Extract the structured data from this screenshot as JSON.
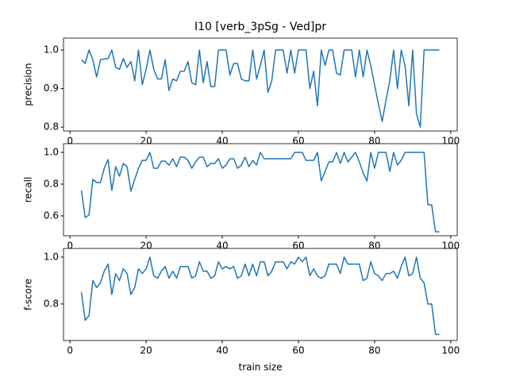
{
  "chart_data": [
    {
      "type": "line",
      "title": "I10 [verb_3pSg - Ved]pr",
      "ylabel": "precision",
      "color": "#1f77b4",
      "x": [
        3,
        4,
        5,
        6,
        7,
        8,
        9,
        10,
        11,
        12,
        13,
        14,
        15,
        16,
        17,
        18,
        19,
        20,
        21,
        22,
        23,
        24,
        25,
        26,
        27,
        28,
        29,
        30,
        31,
        32,
        33,
        34,
        35,
        36,
        37,
        38,
        39,
        40,
        41,
        42,
        43,
        44,
        45,
        46,
        47,
        48,
        49,
        50,
        51,
        52,
        53,
        54,
        55,
        56,
        57,
        58,
        59,
        60,
        61,
        62,
        63,
        64,
        65,
        66,
        67,
        68,
        69,
        70,
        71,
        72,
        73,
        74,
        75,
        76,
        77,
        78,
        79,
        80,
        81,
        82,
        83,
        84,
        85,
        86,
        87,
        88,
        89,
        90,
        91,
        92,
        93,
        94,
        95,
        96,
        97
      ],
      "values": [
        0.975,
        0.965,
        1.0,
        0.975,
        0.93,
        0.975,
        0.977,
        0.978,
        1.0,
        0.955,
        0.95,
        0.978,
        0.955,
        0.97,
        0.92,
        1.0,
        0.91,
        0.95,
        1.0,
        0.95,
        0.925,
        0.925,
        0.975,
        0.895,
        0.925,
        0.92,
        0.945,
        0.945,
        0.97,
        0.915,
        0.91,
        1.0,
        0.915,
        0.97,
        0.905,
        0.905,
        1.0,
        1.0,
        1.0,
        0.935,
        0.965,
        0.965,
        0.925,
        0.92,
        0.92,
        1.0,
        0.925,
        0.96,
        1.0,
        0.89,
        0.92,
        1.0,
        1.0,
        1.0,
        0.94,
        1.0,
        0.94,
        1.0,
        1.0,
        1.0,
        0.9,
        0.945,
        0.855,
        1.0,
        0.96,
        1.0,
        1.0,
        0.94,
        0.935,
        1.0,
        1.0,
        1.0,
        0.93,
        1.0,
        0.93,
        1.0,
        0.96,
        0.91,
        0.86,
        0.815,
        0.87,
        0.92,
        1.0,
        0.9,
        1.0,
        0.96,
        0.855,
        1.0,
        0.835,
        0.8,
        1.0,
        1.0,
        1.0,
        1.0,
        1.0
      ],
      "xlim": [
        -1.7,
        101.7
      ],
      "xticks": [
        0,
        20,
        40,
        60,
        80,
        100
      ],
      "ylim": [
        0.79,
        1.031
      ],
      "yticks": [
        0.8,
        0.9,
        {
          "value": 1.0,
          "label": "1.0"
        }
      ]
    },
    {
      "type": "line",
      "ylabel": "recall",
      "color": "#1f77b4",
      "x": [
        3,
        4,
        5,
        6,
        7,
        8,
        9,
        10,
        11,
        12,
        13,
        14,
        15,
        16,
        17,
        18,
        19,
        20,
        21,
        22,
        23,
        24,
        25,
        26,
        27,
        28,
        29,
        30,
        31,
        32,
        33,
        34,
        35,
        36,
        37,
        38,
        39,
        40,
        41,
        42,
        43,
        44,
        45,
        46,
        47,
        48,
        49,
        50,
        51,
        52,
        53,
        54,
        55,
        56,
        57,
        58,
        59,
        60,
        61,
        62,
        63,
        64,
        65,
        66,
        67,
        68,
        69,
        70,
        71,
        72,
        73,
        74,
        75,
        76,
        77,
        78,
        79,
        80,
        81,
        82,
        83,
        84,
        85,
        86,
        87,
        88,
        89,
        90,
        91,
        92,
        93,
        94,
        95,
        96,
        97
      ],
      "values": [
        0.76,
        0.59,
        0.605,
        0.83,
        0.81,
        0.81,
        0.9,
        0.955,
        0.76,
        0.91,
        0.85,
        0.93,
        0.91,
        0.755,
        0.83,
        0.9,
        0.95,
        0.95,
        1.0,
        0.9,
        0.9,
        0.945,
        0.945,
        0.92,
        0.96,
        0.91,
        0.97,
        0.97,
        0.95,
        0.9,
        0.94,
        0.97,
        0.97,
        0.91,
        0.93,
        0.93,
        0.96,
        0.9,
        0.92,
        0.96,
        0.96,
        0.9,
        0.92,
        0.97,
        0.91,
        0.95,
        0.92,
        1.0,
        0.96,
        0.96,
        0.96,
        0.96,
        0.96,
        0.96,
        0.96,
        0.96,
        1.0,
        1.0,
        1.0,
        0.95,
        0.95,
        0.95,
        1.0,
        0.82,
        0.88,
        0.94,
        0.94,
        1.0,
        0.93,
        1.0,
        0.94,
        0.97,
        1.0,
        0.94,
        0.87,
        0.82,
        1.0,
        0.9,
        1.0,
        1.0,
        1.0,
        0.88,
        1.0,
        0.92,
        0.95,
        1.0,
        1.0,
        1.0,
        1.0,
        1.0,
        1.0,
        0.67,
        0.67,
        0.5,
        0.5
      ],
      "xlim": [
        -1.7,
        101.7
      ],
      "xticks": [
        0,
        20,
        40,
        60,
        80,
        100
      ],
      "ylim": [
        0.475,
        1.055
      ],
      "yticks": [
        0.6,
        0.8,
        {
          "value": 1.0,
          "label": "1.0"
        }
      ]
    },
    {
      "type": "line",
      "ylabel": "f-score",
      "xlabel": "train size",
      "color": "#1f77b4",
      "x": [
        3,
        4,
        5,
        6,
        7,
        8,
        9,
        10,
        11,
        12,
        13,
        14,
        15,
        16,
        17,
        18,
        19,
        20,
        21,
        22,
        23,
        24,
        25,
        26,
        27,
        28,
        29,
        30,
        31,
        32,
        33,
        34,
        35,
        36,
        37,
        38,
        39,
        40,
        41,
        42,
        43,
        44,
        45,
        46,
        47,
        48,
        49,
        50,
        51,
        52,
        53,
        54,
        55,
        56,
        57,
        58,
        59,
        60,
        61,
        62,
        63,
        64,
        65,
        66,
        67,
        68,
        69,
        70,
        71,
        72,
        73,
        74,
        75,
        76,
        77,
        78,
        79,
        80,
        81,
        82,
        83,
        84,
        85,
        86,
        87,
        88,
        89,
        90,
        91,
        92,
        93,
        94,
        95,
        96,
        97
      ],
      "values": [
        0.85,
        0.73,
        0.75,
        0.9,
        0.87,
        0.89,
        0.94,
        0.97,
        0.84,
        0.93,
        0.9,
        0.95,
        0.93,
        0.84,
        0.87,
        0.95,
        0.93,
        0.95,
        1.0,
        0.92,
        0.91,
        0.94,
        0.96,
        0.91,
        0.94,
        0.91,
        0.96,
        0.96,
        0.96,
        0.91,
        0.92,
        0.98,
        0.94,
        0.94,
        0.91,
        0.92,
        0.98,
        0.95,
        0.96,
        0.95,
        0.96,
        0.91,
        0.92,
        0.97,
        0.92,
        0.97,
        0.92,
        0.98,
        0.98,
        0.92,
        0.94,
        0.98,
        0.98,
        0.98,
        0.95,
        0.98,
        0.97,
        1.0,
        0.98,
        1.0,
        0.92,
        0.95,
        0.92,
        0.91,
        0.92,
        0.97,
        0.97,
        0.97,
        0.93,
        1.0,
        0.97,
        0.97,
        0.97,
        0.97,
        0.9,
        0.91,
        0.98,
        0.93,
        0.92,
        0.9,
        0.93,
        0.93,
        0.94,
        0.91,
        0.96,
        1.0,
        0.92,
        0.93,
        1.0,
        0.91,
        0.89,
        0.8,
        0.8,
        0.67,
        0.67
      ],
      "xlim": [
        -1.7,
        101.7
      ],
      "xticks": [
        0,
        20,
        40,
        60,
        80,
        100
      ],
      "ylim": [
        0.644,
        1.037
      ],
      "yticks": [
        0.8,
        {
          "value": 1.0,
          "label": "1.0"
        }
      ]
    }
  ]
}
